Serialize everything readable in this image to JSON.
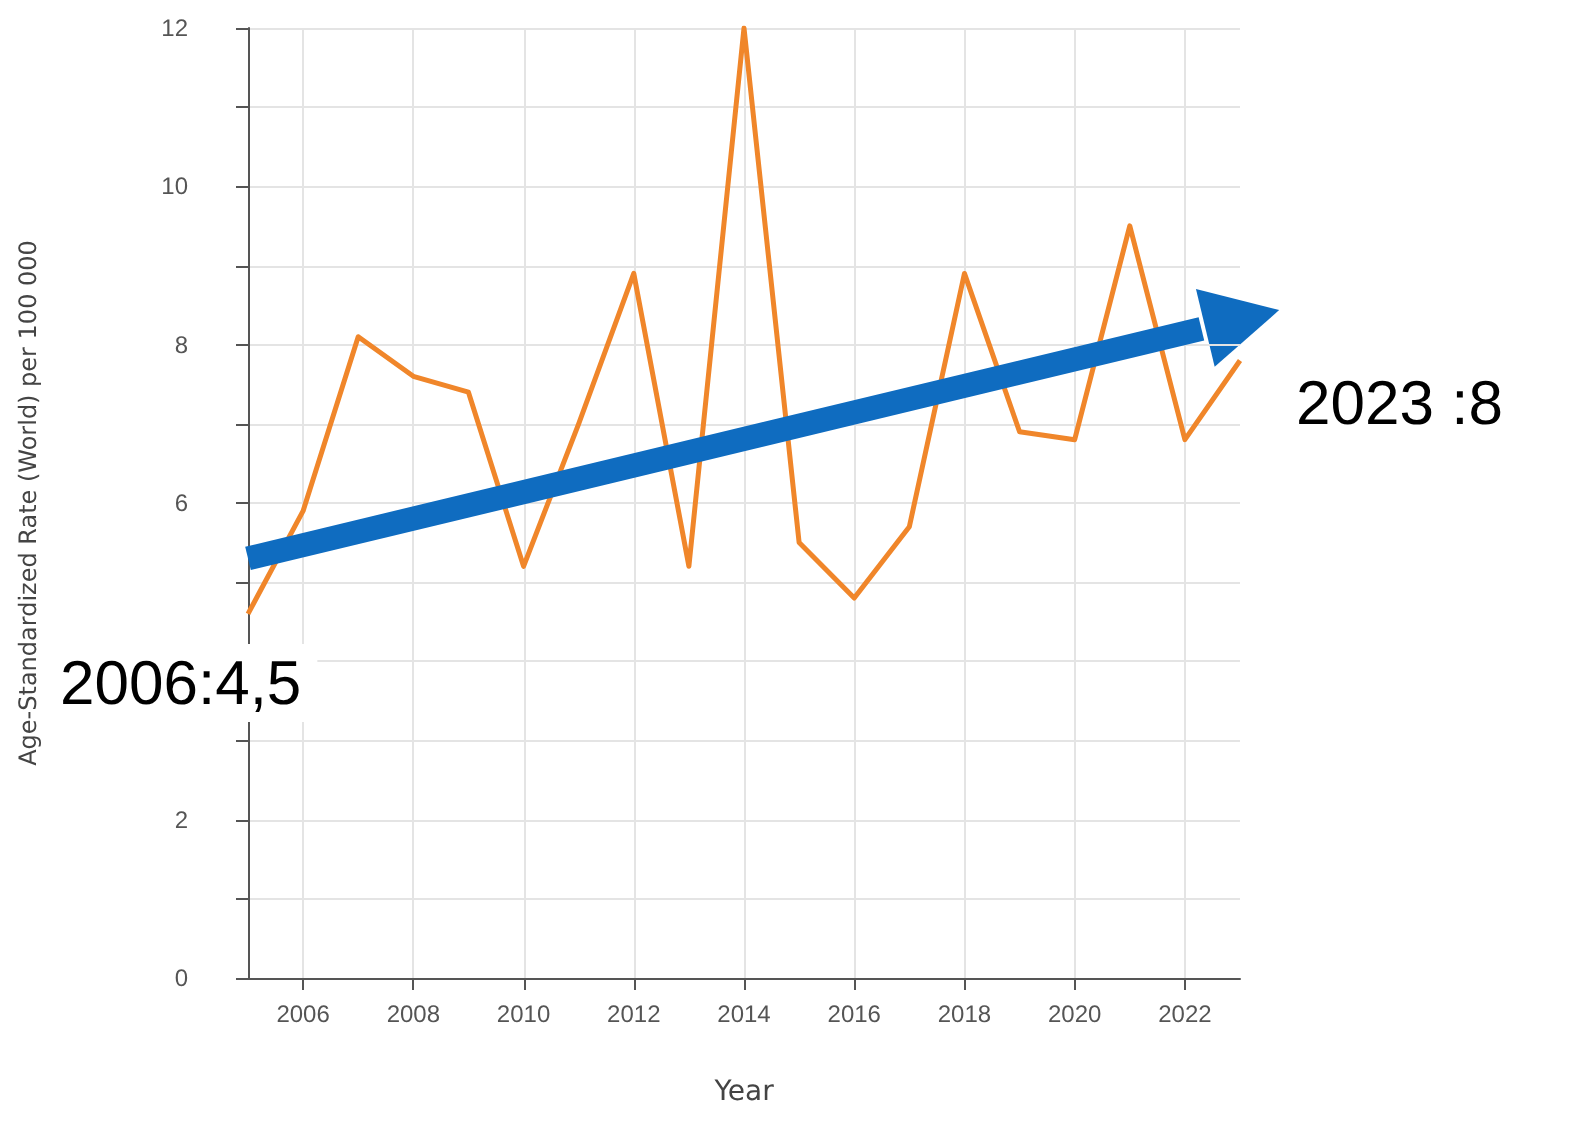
{
  "chart_data": {
    "type": "line",
    "xlabel": "Year",
    "ylabel": "Age-Standardized Rate (World) per 100 000",
    "x": [
      2005,
      2006,
      2007,
      2008,
      2009,
      2010,
      2011,
      2012,
      2013,
      2014,
      2015,
      2016,
      2017,
      2018,
      2019,
      2020,
      2021,
      2022,
      2023
    ],
    "series": [
      {
        "color": "#f0862a",
        "values": [
          4.6,
          5.9,
          8.1,
          7.6,
          7.4,
          5.2,
          7.0,
          8.9,
          5.2,
          12.0,
          5.5,
          4.8,
          5.7,
          8.9,
          6.9,
          6.8,
          9.5,
          6.8,
          7.8
        ]
      },
      {
        "type": "line",
        "color": "#0f6cc0",
        "x": [
          2005,
          2022.3
        ],
        "values": [
          5.3,
          8.2
        ]
      }
    ],
    "xlim": [
      2005,
      2023
    ],
    "xticks": [
      2006,
      2008,
      2010,
      2012,
      2014,
      2016,
      2018,
      2020,
      2022
    ],
    "ylim": [
      0,
      12
    ],
    "yticks": [
      0,
      {
        "value": 1,
        "label": null
      },
      2,
      {
        "value": 3,
        "label": null
      },
      {
        "value": 4,
        "label": null
      },
      {
        "value": 5,
        "label": null
      },
      6,
      {
        "value": 7,
        "label": null
      },
      8,
      {
        "value": 9,
        "label": null
      },
      10,
      {
        "value": 11,
        "label": null
      },
      12
    ],
    "annotations": [
      "2006:4,5",
      "2023 :8"
    ],
    "grid": true,
    "marker": "none",
    "line_style": "solid"
  }
}
